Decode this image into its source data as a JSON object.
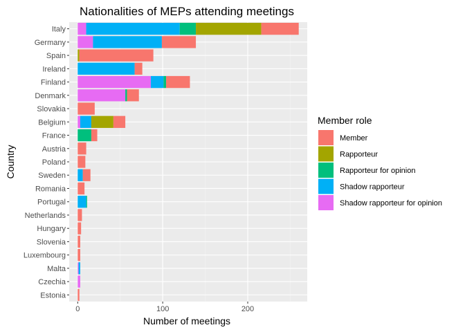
{
  "chart_data": {
    "type": "bar",
    "orientation": "horizontal",
    "stacked": true,
    "title": "Nationalities of MEPs attending meetings",
    "xlabel": "Number of meetings",
    "ylabel": "Country",
    "xlim": [
      -10,
      270
    ],
    "xticks": [
      0,
      100,
      200
    ],
    "grid": true,
    "legend_title": "Member role",
    "legend_position": "right",
    "categories": [
      "Italy",
      "Germany",
      "Spain",
      "Ireland",
      "Finland",
      "Denmark",
      "Slovakia",
      "Belgium",
      "France",
      "Austria",
      "Poland",
      "Sweden",
      "Romania",
      "Portugal",
      "Netherlands",
      "Hungary",
      "Slovenia",
      "Luxembourg",
      "Malta",
      "Czechia",
      "Estonia"
    ],
    "series": [
      {
        "name": "Shadow rapporteur for opinion",
        "color": "#E76BF3",
        "values": [
          10,
          18,
          0,
          0,
          86,
          56,
          0,
          3,
          0,
          0,
          0,
          0,
          0,
          0,
          0,
          0,
          0,
          0,
          1,
          3,
          0
        ]
      },
      {
        "name": "Shadow rapporteur",
        "color": "#00B0F6",
        "values": [
          110,
          81,
          0,
          67,
          15,
          0,
          0,
          13,
          0,
          0,
          0,
          6,
          0,
          10,
          0,
          0,
          0,
          0,
          2,
          0,
          0
        ]
      },
      {
        "name": "Rapporteur for opinion",
        "color": "#00BF7D",
        "values": [
          19,
          0,
          0,
          0,
          3,
          2,
          0,
          0,
          16,
          0,
          0,
          0,
          0,
          1,
          0,
          0,
          0,
          0,
          0,
          0,
          0
        ]
      },
      {
        "name": "Rapporteur",
        "color": "#A3A500",
        "values": [
          77,
          0,
          2,
          0,
          0,
          0,
          0,
          26,
          0,
          0,
          0,
          0,
          0,
          0,
          0,
          0,
          0,
          0,
          0,
          0,
          0
        ]
      },
      {
        "name": "Member",
        "color": "#F8766D",
        "values": [
          44,
          40,
          87,
          9,
          28,
          14,
          20,
          14,
          7,
          10,
          9,
          9,
          8,
          0,
          5,
          4,
          3,
          3,
          0,
          0,
          2
        ]
      }
    ],
    "legend_order": [
      "Member",
      "Rapporteur",
      "Rapporteur for opinion",
      "Shadow rapporteur",
      "Shadow rapporteur for opinion"
    ]
  }
}
